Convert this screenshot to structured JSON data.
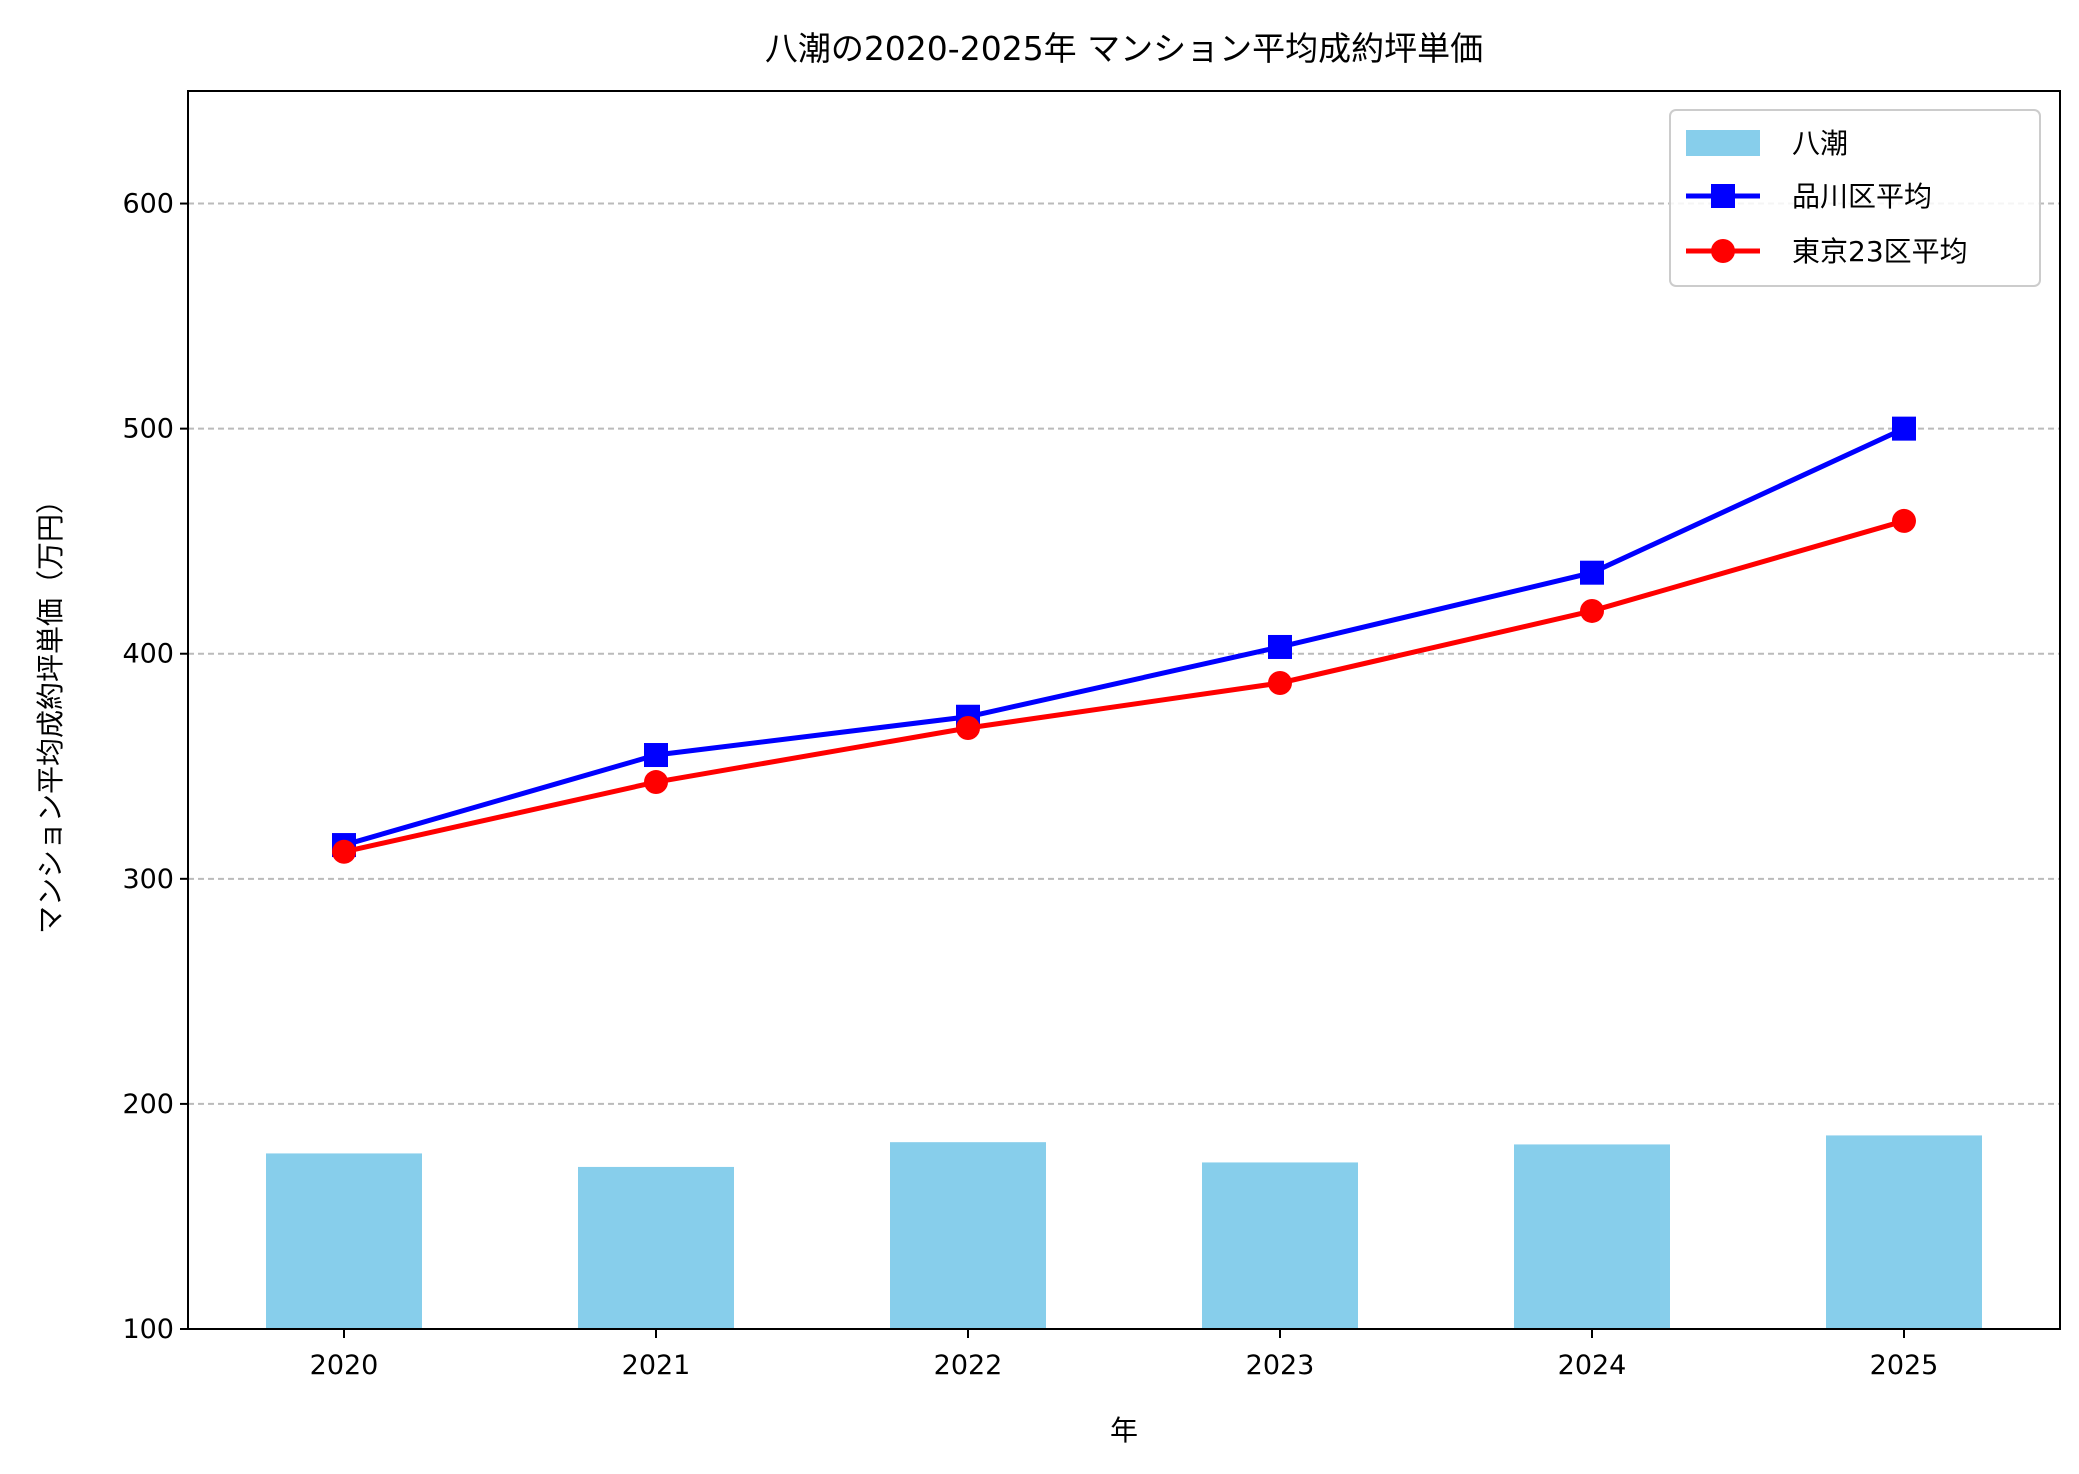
{
  "chart_data": {
    "type": "bar+line",
    "title": "八潮の2020-2025年 マンション平均成約坪単価",
    "xlabel": "年",
    "ylabel": "マンション平均成約坪単価（万円）",
    "categories": [
      "2020",
      "2021",
      "2022",
      "2023",
      "2024",
      "2025"
    ],
    "ylim": [
      100,
      650
    ],
    "yticks": [
      100,
      200,
      300,
      400,
      500,
      600
    ],
    "grid": "y-dashed",
    "legend_position": "top-right",
    "series": [
      {
        "name": "八潮",
        "kind": "bar",
        "color": "#87CEEB",
        "values": [
          178,
          172,
          183,
          174,
          182,
          186
        ]
      },
      {
        "name": "品川区平均",
        "kind": "line",
        "marker": "square",
        "color": "#0000FF",
        "values": [
          315,
          355,
          372,
          403,
          436,
          500
        ]
      },
      {
        "name": "東京23区平均",
        "kind": "line",
        "marker": "circle",
        "color": "#FF0000",
        "values": [
          312,
          343,
          367,
          387,
          419,
          459
        ]
      }
    ]
  }
}
